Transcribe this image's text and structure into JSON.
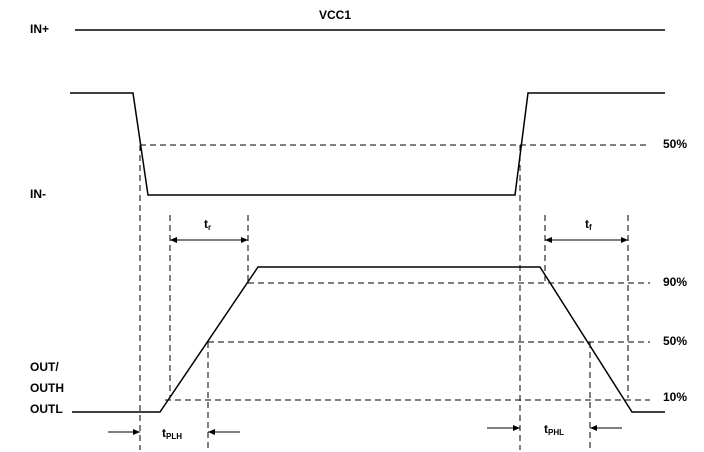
{
  "inputs": {
    "in_plus": "IN+",
    "vcc": "VCC1",
    "in_minus": "IN-"
  },
  "output_labels": [
    "OUT/",
    "OUTH",
    "OUTL"
  ],
  "levels": {
    "in_50": "50%",
    "out_90": "90%",
    "out_50": "50%",
    "out_10": "10%"
  },
  "timings": {
    "rise": {
      "main": "t",
      "sub": "r"
    },
    "fall": {
      "main": "t",
      "sub": "f"
    },
    "plh": {
      "main": "t",
      "sub": "PLH"
    },
    "phl": {
      "main": "t",
      "sub": "PHL"
    }
  }
}
